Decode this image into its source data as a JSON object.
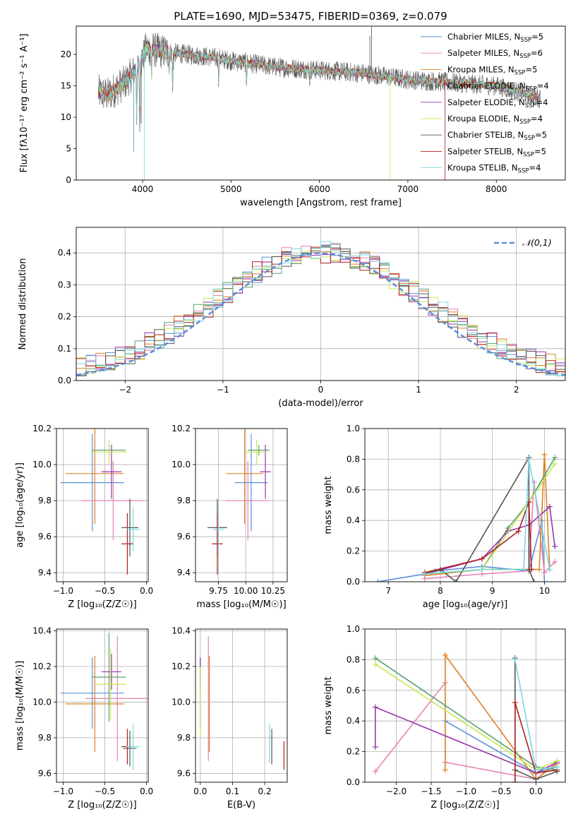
{
  "figure": {
    "title": "PLATE=1690, MJD=53475, FIBERID=0369, z=0.079"
  },
  "model_colors": [
    "#5b8fd6",
    "#e384b5",
    "#e08020",
    "#5aa070",
    "#9a35b0",
    "#c7e850",
    "#555555",
    "#b01e1e",
    "#7ad8e0"
  ],
  "chart_data": [
    {
      "id": "spectrum",
      "type": "line",
      "xlabel": "wavelength [Angstrom, rest frame]",
      "ylabel": "Flux [fλ10⁻¹⁷ erg cm⁻² s⁻¹ A⁻¹]",
      "xlim": [
        3250,
        8780
      ],
      "ylim": [
        0,
        24.5
      ],
      "xticks": [
        4000,
        5000,
        6000,
        7000,
        8000
      ],
      "yticks": [
        0,
        5,
        10,
        15,
        20
      ],
      "legend_position": "top-right",
      "legend": [
        {
          "name": "Chabrier MILES, N",
          "sub": "SSP",
          "tail": "=5"
        },
        {
          "name": "Salpeter MILES, N",
          "sub": "SSP",
          "tail": "=6"
        },
        {
          "name": "Kroupa MILES, N",
          "sub": "SSP",
          "tail": "=5"
        },
        {
          "name": "Chabrier ELODIE, N",
          "sub": "SSP",
          "tail": "=4"
        },
        {
          "name": "Salpeter ELODIE, N",
          "sub": "SSP",
          "tail": "=4"
        },
        {
          "name": "Kroupa ELODIE, N",
          "sub": "SSP",
          "tail": "=4"
        },
        {
          "name": "Chabrier STELIB, N",
          "sub": "SSP",
          "tail": "=5"
        },
        {
          "name": "Salpeter STELIB, N",
          "sub": "SSP",
          "tail": "=5"
        },
        {
          "name": "Kroupa STELIB, N",
          "sub": "SSP",
          "tail": "=4"
        }
      ],
      "continuum": [
        [
          3500,
          14
        ],
        [
          3600,
          13.5
        ],
        [
          3800,
          15.5
        ],
        [
          3950,
          18
        ],
        [
          4050,
          21
        ],
        [
          4200,
          20.5
        ],
        [
          4500,
          20
        ],
        [
          4800,
          19.5
        ],
        [
          5000,
          19
        ],
        [
          5500,
          18
        ],
        [
          6000,
          17.5
        ],
        [
          6500,
          17
        ],
        [
          7000,
          16
        ],
        [
          7500,
          15.5
        ],
        [
          8000,
          15
        ],
        [
          8500,
          13
        ]
      ]
    },
    {
      "id": "residuals",
      "type": "histogram",
      "xlabel": "(data-model)/error",
      "ylabel": "Normed distribution",
      "xlim": [
        -2.5,
        2.5
      ],
      "ylim": [
        0,
        0.48
      ],
      "xticks": [
        -2,
        -1,
        0,
        1,
        2
      ],
      "yticks": [
        0.0,
        0.1,
        0.2,
        0.3,
        0.4
      ],
      "bin_width": 0.1,
      "reference_curve": {
        "name": "𝒩(0,1)",
        "mean": 0,
        "sigma": 1
      },
      "legend_position": "top-right"
    },
    {
      "id": "age-vs-Z",
      "type": "errorbar",
      "xlabel": "Z [log₁₀(Z/Z☉)]",
      "ylabel": "age  [log₁₀(age/yr)]",
      "xlim": [
        -1.08,
        0.02
      ],
      "ylim": [
        9.35,
        10.2
      ],
      "xticks": [
        -1.0,
        -0.5,
        0.0
      ],
      "yticks": [
        9.4,
        9.6,
        9.8,
        10.0,
        10.2
      ],
      "points": [
        {
          "x": -0.65,
          "xerr": 0.38,
          "y": 9.9,
          "yerr": 0.27
        },
        {
          "x": -0.4,
          "xerr": 0.38,
          "y": 9.8,
          "yerr": 0.22
        },
        {
          "x": -0.62,
          "xerr": 0.35,
          "y": 9.95,
          "yerr": 0.28
        },
        {
          "x": -0.45,
          "xerr": 0.2,
          "y": 10.08,
          "yerr": 0.03
        },
        {
          "x": -0.42,
          "xerr": 0.12,
          "y": 9.96,
          "yerr": 0.15
        },
        {
          "x": -0.45,
          "xerr": 0.22,
          "y": 10.07,
          "yerr": 0.07
        },
        {
          "x": -0.2,
          "xerr": 0.1,
          "y": 9.65,
          "yerr": 0.16
        },
        {
          "x": -0.23,
          "xerr": 0.07,
          "y": 9.56,
          "yerr": 0.17
        },
        {
          "x": -0.16,
          "xerr": 0.08,
          "y": 9.64,
          "yerr": 0.12
        }
      ]
    },
    {
      "id": "age-vs-mass",
      "type": "errorbar",
      "xlabel": "mass [log₁₀(M/M☉)]",
      "ylabel": "",
      "xlim": [
        9.54,
        10.38
      ],
      "ylim": [
        9.35,
        10.2
      ],
      "xticks": [
        9.75,
        10.0,
        10.25
      ],
      "tick_labels": [
        "9.75",
        "10.00",
        "10.25"
      ],
      "yticks": [
        9.4,
        9.6,
        9.8,
        10.0,
        10.2
      ],
      "points": [
        {
          "x": 10.05,
          "xerr": 0.15,
          "y": 9.9,
          "yerr": 0.27
        },
        {
          "x": 10.02,
          "xerr": 0.2,
          "y": 9.8,
          "yerr": 0.22
        },
        {
          "x": 9.99,
          "xerr": 0.17,
          "y": 9.95,
          "yerr": 0.28
        },
        {
          "x": 10.12,
          "xerr": 0.1,
          "y": 10.08,
          "yerr": 0.03
        },
        {
          "x": 10.18,
          "xerr": 0.05,
          "y": 9.96,
          "yerr": 0.15
        },
        {
          "x": 10.1,
          "xerr": 0.1,
          "y": 10.07,
          "yerr": 0.07
        },
        {
          "x": 9.74,
          "xerr": 0.09,
          "y": 9.65,
          "yerr": 0.16
        },
        {
          "x": 9.74,
          "xerr": 0.05,
          "y": 9.56,
          "yerr": 0.17
        },
        {
          "x": 9.75,
          "xerr": 0.05,
          "y": 9.64,
          "yerr": 0.12
        }
      ]
    },
    {
      "id": "weight-vs-age",
      "type": "line",
      "xlabel": "age  [log₁₀(age/yr)]",
      "ylabel": "mass weight",
      "xlim": [
        6.55,
        10.4
      ],
      "ylim": [
        0,
        1.0
      ],
      "xticks": [
        7,
        8,
        9,
        10
      ],
      "yticks": [
        0.0,
        0.2,
        0.4,
        0.6,
        0.8,
        1.0
      ],
      "series": [
        {
          "points": [
            [
              6.8,
              0.0
            ],
            [
              7.7,
              0.05
            ],
            [
              7.9,
              0.07
            ],
            [
              8.8,
              0.1
            ],
            [
              9.7,
              0.07
            ],
            [
              9.95,
              0.4
            ],
            [
              10.0,
              0.0
            ]
          ]
        },
        {
          "points": [
            [
              7.7,
              0.02
            ],
            [
              8.8,
              0.05
            ],
            [
              9.7,
              0.07
            ],
            [
              9.8,
              0.65
            ],
            [
              10.0,
              0.06
            ],
            [
              10.2,
              0.13
            ]
          ]
        },
        {
          "points": [
            [
              7.7,
              0.04
            ],
            [
              8.8,
              0.08
            ],
            [
              9.7,
              0.08
            ],
            [
              9.9,
              0.08
            ],
            [
              10.0,
              0.83
            ],
            [
              10.1,
              0.08
            ]
          ]
        },
        {
          "points": [
            [
              7.7,
              0.05
            ],
            [
              8.8,
              0.08
            ],
            [
              9.3,
              0.35
            ],
            [
              9.7,
              0.52
            ],
            [
              10.2,
              0.81
            ]
          ]
        },
        {
          "points": [
            [
              7.7,
              0.05
            ],
            [
              8.8,
              0.15
            ],
            [
              9.3,
              0.33
            ],
            [
              9.7,
              0.37
            ],
            [
              10.1,
              0.49
            ],
            [
              10.2,
              0.23
            ]
          ]
        },
        {
          "points": [
            [
              7.7,
              0.05
            ],
            [
              8.8,
              0.08
            ],
            [
              9.7,
              0.52
            ],
            [
              10.2,
              0.77
            ]
          ]
        },
        {
          "points": [
            [
              7.7,
              0.05
            ],
            [
              8.0,
              0.08
            ],
            [
              8.3,
              0.0
            ],
            [
              9.7,
              0.81
            ],
            [
              9.7,
              0.08
            ],
            [
              9.8,
              0.0
            ]
          ]
        },
        {
          "points": [
            [
              7.7,
              0.06
            ],
            [
              8.8,
              0.15
            ],
            [
              9.5,
              0.33
            ],
            [
              9.7,
              0.52
            ],
            [
              9.75,
              0.08
            ]
          ]
        },
        {
          "points": [
            [
              7.7,
              0.05
            ],
            [
              8.8,
              0.08
            ],
            [
              9.6,
              0.08
            ],
            [
              9.7,
              0.8
            ],
            [
              10.1,
              0.08
            ]
          ]
        }
      ]
    },
    {
      "id": "mass-vs-Z",
      "type": "errorbar",
      "xlabel": "Z [log₁₀(Z/Z☉)]",
      "ylabel": "mass [log₁₀(M/M☉)]",
      "xlim": [
        -1.08,
        0.02
      ],
      "ylim": [
        9.55,
        10.41
      ],
      "xticks": [
        -1.0,
        -0.5,
        0.0
      ],
      "yticks": [
        9.6,
        9.8,
        10.0,
        10.2,
        10.4
      ],
      "points": [
        {
          "x": -0.65,
          "xerr": 0.38,
          "y": 10.05,
          "yerr": 0.2
        },
        {
          "x": -0.35,
          "xerr": 0.38,
          "y": 10.02,
          "yerr": 0.35
        },
        {
          "x": -0.62,
          "xerr": 0.35,
          "y": 9.99,
          "yerr": 0.27
        },
        {
          "x": -0.45,
          "xerr": 0.2,
          "y": 10.14,
          "yerr": 0.25
        },
        {
          "x": -0.42,
          "xerr": 0.12,
          "y": 10.17,
          "yerr": 0.1
        },
        {
          "x": -0.43,
          "xerr": 0.18,
          "y": 10.1,
          "yerr": 0.2
        },
        {
          "x": -0.2,
          "xerr": 0.08,
          "y": 9.74,
          "yerr": 0.1
        },
        {
          "x": -0.23,
          "xerr": 0.07,
          "y": 9.75,
          "yerr": 0.1
        },
        {
          "x": -0.16,
          "xerr": 0.08,
          "y": 9.75,
          "yerr": 0.13
        }
      ]
    },
    {
      "id": "mass-vs-EBV",
      "type": "errorbar",
      "xlabel": "E(B-V)",
      "ylabel": "",
      "xlim": [
        -0.015,
        0.27
      ],
      "ylim": [
        9.55,
        10.41
      ],
      "xticks": [
        0.0,
        0.1,
        0.2
      ],
      "yticks": [
        9.6,
        9.8,
        10.0,
        10.2,
        10.4
      ],
      "points": [
        {
          "x": 0.0,
          "y": 10.05,
          "yerr": 0.2
        },
        {
          "x": 0.025,
          "y": 10.02,
          "yerr": 0.35
        },
        {
          "x": 0.028,
          "y": 9.99,
          "yerr": 0.27
        },
        {
          "x": 0.0,
          "y": 10.14,
          "yerr": 0.1
        },
        {
          "x": 0.0,
          "y": 10.17,
          "yerr": 0.08
        },
        {
          "x": 0.0,
          "y": 10.0,
          "yerr": 0.2
        },
        {
          "x": 0.222,
          "y": 9.75,
          "yerr": 0.1
        },
        {
          "x": 0.26,
          "y": 9.7,
          "yerr": 0.08
        },
        {
          "x": 0.215,
          "y": 9.77,
          "yerr": 0.11
        }
      ]
    },
    {
      "id": "weight-vs-Z",
      "type": "line",
      "xlabel": "Z [log₁₀(Z/Z☉)]",
      "ylabel": "mass weight",
      "xlim": [
        -2.45,
        0.42
      ],
      "ylim": [
        0,
        1.0
      ],
      "xticks": [
        -2.0,
        -1.5,
        -1.0,
        -0.5,
        0.0
      ],
      "yticks": [
        0.0,
        0.2,
        0.4,
        0.6,
        0.8,
        1.0
      ],
      "series": [
        {
          "points": [
            [
              -1.3,
              0.4
            ],
            [
              0.0,
              0.06
            ],
            [
              0.3,
              0.1
            ]
          ]
        },
        {
          "points": [
            [
              -2.3,
              0.07
            ],
            [
              -1.3,
              0.65
            ],
            [
              -1.3,
              0.13
            ],
            [
              0.0,
              0.02
            ],
            [
              0.3,
              0.13
            ]
          ]
        },
        {
          "points": [
            [
              -1.3,
              0.08
            ],
            [
              -1.3,
              0.83
            ],
            [
              0.0,
              0.02
            ],
            [
              0.3,
              0.12
            ]
          ]
        },
        {
          "points": [
            [
              -2.3,
              0.81
            ],
            [
              0.0,
              0.1
            ],
            [
              0.3,
              0.08
            ]
          ]
        },
        {
          "points": [
            [
              -2.3,
              0.23
            ],
            [
              -2.3,
              0.49
            ],
            [
              0.0,
              0.06
            ],
            [
              0.3,
              0.13
            ]
          ]
        },
        {
          "points": [
            [
              -2.3,
              0.77
            ],
            [
              0.0,
              0.08
            ],
            [
              0.3,
              0.14
            ]
          ]
        },
        {
          "points": [
            [
              -0.3,
              0.0
            ],
            [
              -0.3,
              0.81
            ],
            [
              -0.3,
              0.08
            ],
            [
              0.0,
              0.02
            ],
            [
              0.3,
              0.07
            ]
          ]
        },
        {
          "points": [
            [
              -0.3,
              0.0
            ],
            [
              -0.3,
              0.52
            ],
            [
              0.0,
              0.06
            ],
            [
              0.3,
              0.08
            ]
          ]
        },
        {
          "points": [
            [
              -0.3,
              0.8
            ],
            [
              0.0,
              0.08
            ],
            [
              0.3,
              0.1
            ]
          ]
        }
      ]
    }
  ]
}
